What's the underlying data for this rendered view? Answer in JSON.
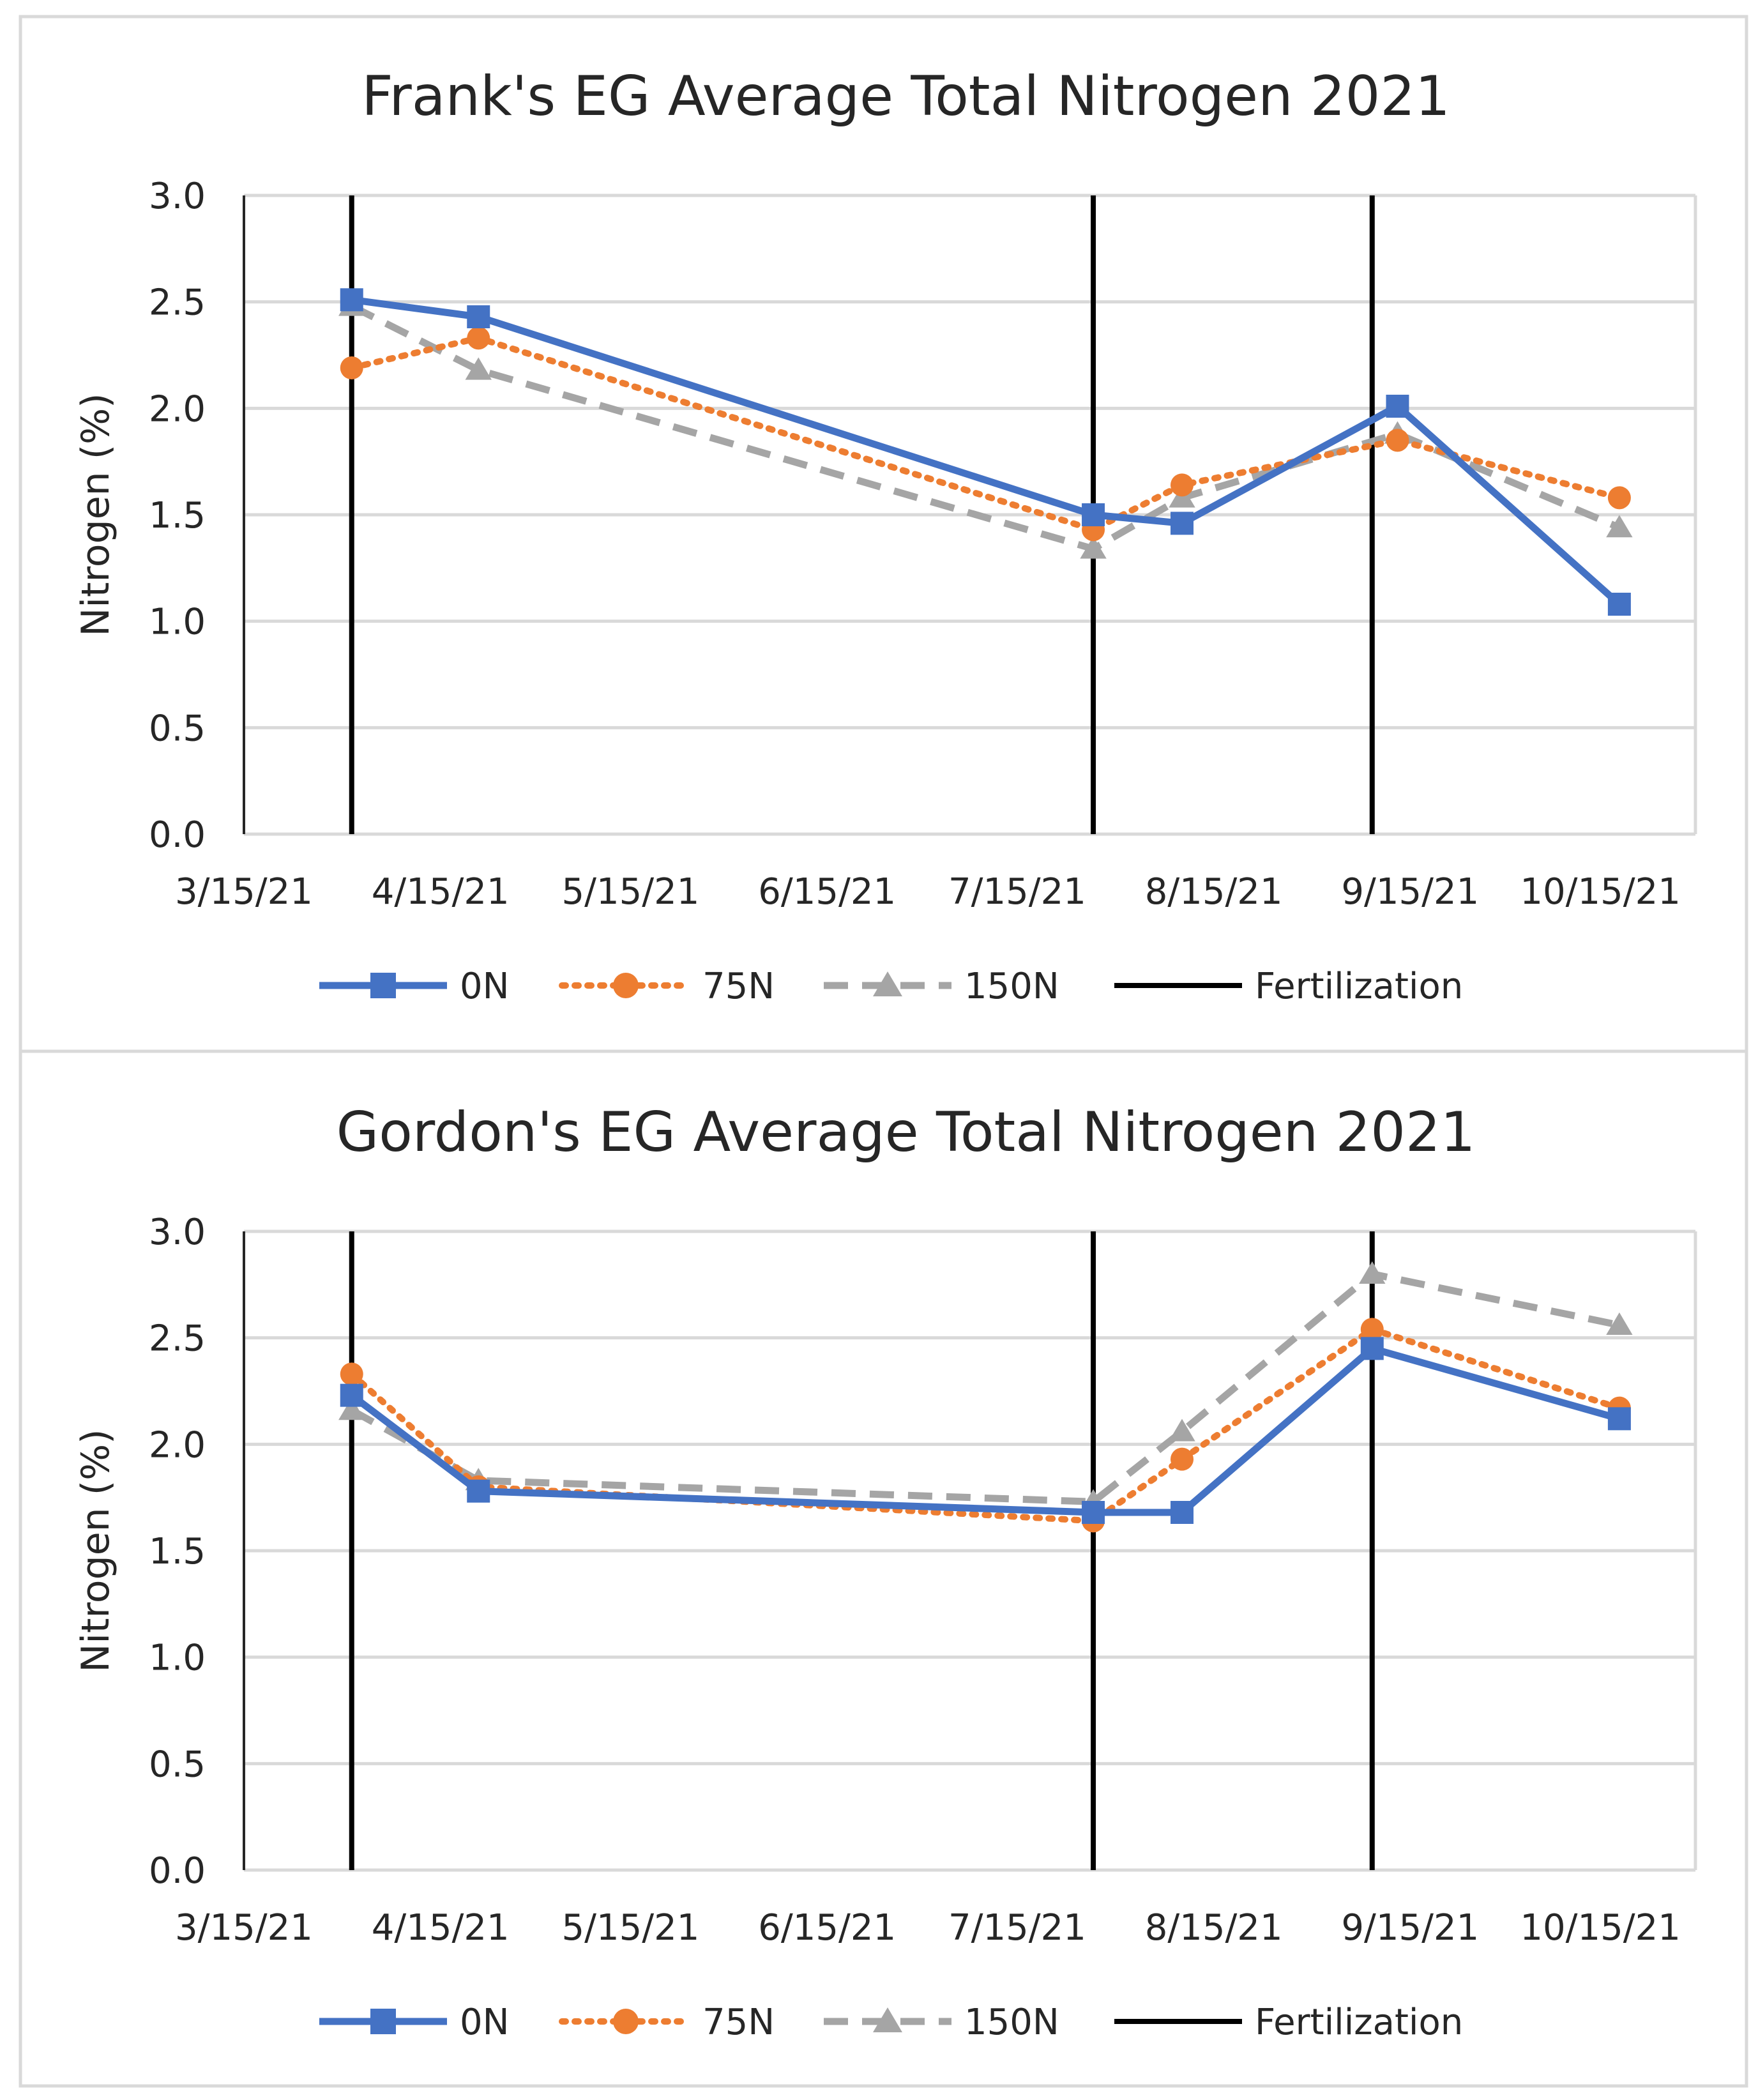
{
  "chart_data": [
    {
      "type": "line",
      "title": "Frank's EG Average Total Nitrogen 2021",
      "xlabel": "",
      "ylabel": "Nitrogen (%)",
      "xlim": [
        "3/15/21",
        "10/30/21"
      ],
      "ylim": [
        0,
        3.0
      ],
      "y_ticks": [
        "0.0",
        "0.5",
        "1.0",
        "1.5",
        "2.0",
        "2.5",
        "3.0"
      ],
      "x_ticks": [
        "3/15/21",
        "4/15/21",
        "5/15/21",
        "6/15/21",
        "7/15/21",
        "8/15/21",
        "9/15/21",
        "10/15/21"
      ],
      "grid": true,
      "legend_position": "bottom",
      "x": [
        "4/1/21",
        "4/21/21",
        "7/27/21",
        "8/10/21",
        "9/13/21",
        "10/18/21"
      ],
      "series": [
        {
          "name": "0N",
          "color": "#4472C4",
          "style": "solid",
          "marker": "square",
          "values": [
            2.51,
            2.43,
            1.5,
            1.46,
            2.01,
            1.08
          ]
        },
        {
          "name": "75N",
          "color": "#ED7D31",
          "style": "dotted",
          "marker": "circle",
          "values": [
            2.19,
            2.33,
            1.43,
            1.64,
            1.85,
            1.58
          ]
        },
        {
          "name": "150N",
          "color": "#A5A5A5",
          "style": "dashed",
          "marker": "triangle",
          "values": [
            2.48,
            2.18,
            1.34,
            1.58,
            1.88,
            1.44
          ]
        }
      ],
      "fertilization": {
        "name": "Fertilization",
        "color": "#000000",
        "dates": [
          "4/1/21",
          "7/27/21",
          "9/9/21"
        ]
      }
    },
    {
      "type": "line",
      "title": "Gordon's EG Average Total Nitrogen 2021",
      "xlabel": "",
      "ylabel": "Nitrogen (%)",
      "xlim": [
        "3/15/21",
        "10/30/21"
      ],
      "ylim": [
        0,
        3.0
      ],
      "y_ticks": [
        "0.0",
        "0.5",
        "1.0",
        "1.5",
        "2.0",
        "2.5",
        "3.0"
      ],
      "x_ticks": [
        "3/15/21",
        "4/15/21",
        "5/15/21",
        "6/15/21",
        "7/15/21",
        "8/15/21",
        "9/15/21",
        "10/15/21"
      ],
      "grid": true,
      "legend_position": "bottom",
      "x": [
        "4/1/21",
        "4/21/21",
        "7/27/21",
        "8/10/21",
        "9/9/21",
        "10/18/21"
      ],
      "series": [
        {
          "name": "0N",
          "color": "#4472C4",
          "style": "solid",
          "marker": "square",
          "values": [
            2.23,
            1.78,
            1.68,
            1.68,
            2.45,
            2.12
          ]
        },
        {
          "name": "75N",
          "color": "#ED7D31",
          "style": "dotted",
          "marker": "circle",
          "values": [
            2.33,
            1.8,
            1.64,
            1.93,
            2.54,
            2.17
          ]
        },
        {
          "name": "150N",
          "color": "#A5A5A5",
          "style": "dashed",
          "marker": "triangle",
          "values": [
            2.16,
            1.83,
            1.73,
            2.06,
            2.8,
            2.56
          ]
        }
      ],
      "fertilization": {
        "name": "Fertilization",
        "color": "#000000",
        "dates": [
          "4/1/21",
          "7/27/21",
          "9/9/21"
        ]
      }
    }
  ]
}
